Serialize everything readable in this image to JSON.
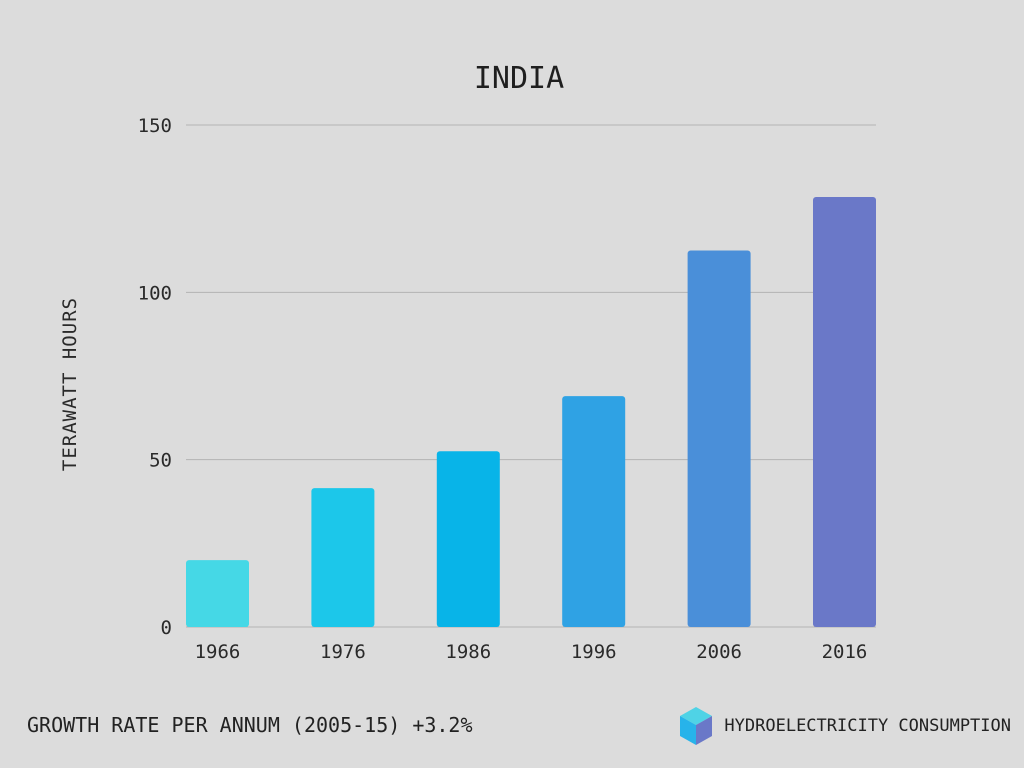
{
  "chart_data": {
    "type": "bar",
    "title": "INDIA",
    "ylabel": "TERAWATT HOURS",
    "xlabel": "",
    "categories": [
      "1966",
      "1976",
      "1986",
      "1996",
      "2006",
      "2016"
    ],
    "values": [
      20,
      41.5,
      52.5,
      69,
      112.5,
      128.5
    ],
    "bar_colors": [
      "#45d8e6",
      "#1cc7ea",
      "#08b4e8",
      "#2fa2e4",
      "#4a8fd9",
      "#6a78c8"
    ],
    "ylim": [
      0,
      150
    ],
    "yticks": [
      0,
      50,
      100,
      150
    ],
    "grid": true
  },
  "footer": {
    "growth_text": "GROWTH RATE PER ANNUM (2005-15) +3.2%",
    "brand_label": "HYDROELECTRICITY CONSUMPTION",
    "brand_icon": "cube-icon"
  },
  "colors": {
    "background": "#dcdcdc",
    "gridline": "#b3b3b3",
    "text": "#1f1f1f"
  }
}
